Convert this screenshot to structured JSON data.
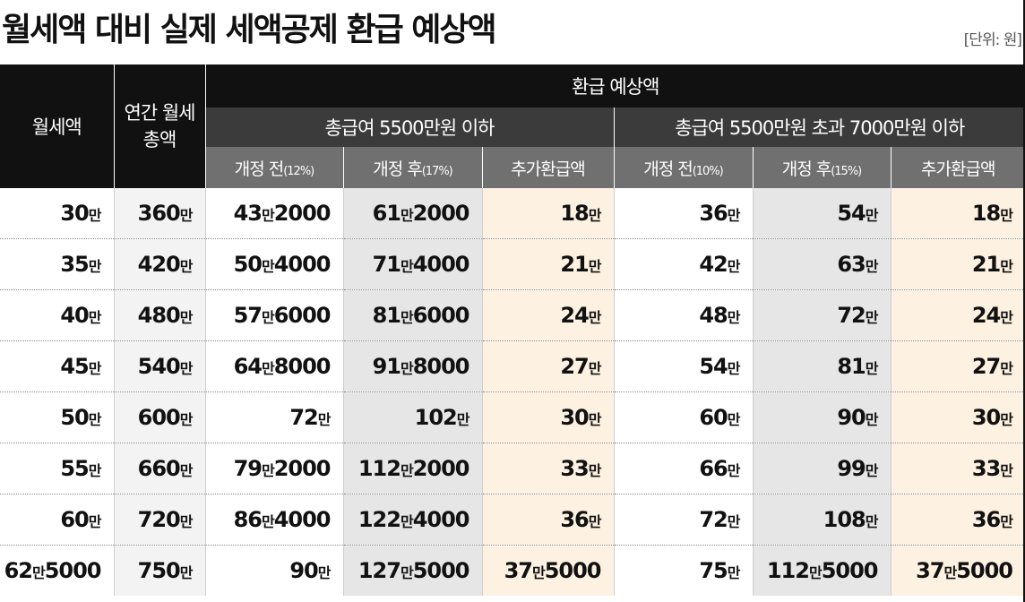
{
  "title": "월세액 대비 실제 세액공제 환급 예상액",
  "unit": "[단위: 원]",
  "headers": {
    "monthly_rent": "월세액",
    "annual_rent": "연간 월세총액",
    "refund": "환급 예상액",
    "group1": "총급여 5500만원 이하",
    "group2": "총급여 5500만원 초과 7000만원 이하",
    "before": "개정 전",
    "after": "개정 후",
    "extra": "추가환급액",
    "g1_before_rate": "(12%)",
    "g1_after_rate": "(17%)",
    "g2_before_rate": "(10%)",
    "g2_after_rate": "(15%)"
  },
  "rows": [
    [
      "30만",
      "360만",
      "43만2000",
      "61만2000",
      "18만",
      "36만",
      "54만",
      "18만"
    ],
    [
      "35만",
      "420만",
      "50만4000",
      "71만4000",
      "21만",
      "42만",
      "63만",
      "21만"
    ],
    [
      "40만",
      "480만",
      "57만6000",
      "81만6000",
      "24만",
      "48만",
      "72만",
      "24만"
    ],
    [
      "45만",
      "540만",
      "64만8000",
      "91만8000",
      "27만",
      "54만",
      "81만",
      "27만"
    ],
    [
      "50만",
      "600만",
      "72만",
      "102만",
      "30만",
      "60만",
      "90만",
      "30만"
    ],
    [
      "55만",
      "660만",
      "79만2000",
      "112만2000",
      "33만",
      "66만",
      "99만",
      "33만"
    ],
    [
      "60만",
      "720만",
      "86만4000",
      "122만4000",
      "36만",
      "72만",
      "108만",
      "36만"
    ],
    [
      "62만5000",
      "750만",
      "90만",
      "127만5000",
      "37만5000",
      "75만",
      "112만5000",
      "37만5000"
    ]
  ],
  "colors": {
    "header_black": "#111111",
    "header_dark": "#3b3b3b",
    "header_grey": "#707070",
    "highlight_beige": "#fdf1e1",
    "column_grey": "#e6e6e6"
  }
}
